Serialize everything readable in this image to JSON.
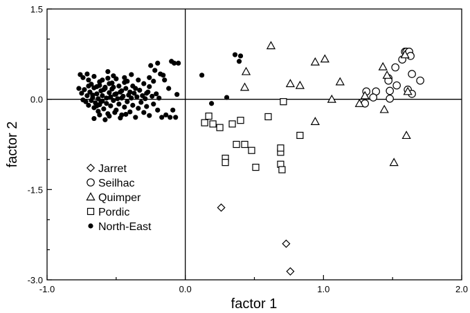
{
  "chart_data": {
    "type": "scatter",
    "xlabel": "factor 1",
    "ylabel": "factor 2",
    "xlim": [
      -1.0,
      2.0
    ],
    "ylim": [
      -3.0,
      1.5
    ],
    "x_ticks": [
      -1.0,
      0.0,
      1.0,
      2.0
    ],
    "x_tick_labels": [
      "-1.0",
      "0.0",
      "1.0",
      "2.0"
    ],
    "y_ticks": [
      1.5,
      0.0,
      -1.5,
      -3.0
    ],
    "y_tick_labels": [
      "1.5",
      "0.0",
      "-1.5",
      "-3.0"
    ],
    "reference_lines": {
      "x": 0.0,
      "y": 0.0
    },
    "grid": false,
    "legend": {
      "position": "lower-left"
    },
    "series": [
      {
        "name": "Jarret",
        "marker": "diamond",
        "points": [
          [
            0.26,
            -1.8
          ],
          [
            0.73,
            -2.4
          ],
          [
            0.76,
            -2.86
          ]
        ]
      },
      {
        "name": "Seilhac",
        "marker": "circle",
        "points": [
          [
            1.31,
            0.13
          ],
          [
            1.3,
            -0.07
          ],
          [
            1.38,
            0.13
          ],
          [
            1.36,
            0.03
          ],
          [
            1.47,
            0.35
          ],
          [
            1.47,
            0.31
          ],
          [
            1.48,
            0.14
          ],
          [
            1.48,
            0.01
          ],
          [
            1.52,
            0.53
          ],
          [
            1.53,
            0.23
          ],
          [
            1.57,
            0.66
          ],
          [
            1.59,
            0.79
          ],
          [
            1.6,
            0.79
          ],
          [
            1.62,
            0.79
          ],
          [
            1.63,
            0.72
          ],
          [
            1.61,
            0.16
          ],
          [
            1.64,
            0.42
          ],
          [
            1.64,
            0.09
          ],
          [
            1.7,
            0.31
          ]
        ]
      },
      {
        "name": "Quimper",
        "marker": "triangle",
        "points": [
          [
            0.44,
            0.46
          ],
          [
            0.43,
            0.2
          ],
          [
            0.62,
            0.89
          ],
          [
            0.76,
            0.26
          ],
          [
            0.83,
            0.23
          ],
          [
            0.94,
            0.62
          ],
          [
            1.01,
            0.67
          ],
          [
            1.06,
            0.0
          ],
          [
            0.94,
            -0.37
          ],
          [
            1.12,
            0.29
          ],
          [
            1.26,
            -0.07
          ],
          [
            1.3,
            0.06
          ],
          [
            1.43,
            0.54
          ],
          [
            1.46,
            0.4
          ],
          [
            1.44,
            -0.17
          ],
          [
            1.51,
            -1.05
          ],
          [
            1.59,
            0.74
          ],
          [
            1.61,
            0.13
          ],
          [
            1.6,
            -0.6
          ]
        ]
      },
      {
        "name": "Pordic",
        "marker": "square",
        "points": [
          [
            0.14,
            -0.39
          ],
          [
            0.17,
            -0.28
          ],
          [
            0.2,
            -0.41
          ],
          [
            0.25,
            -0.47
          ],
          [
            0.29,
            -0.98
          ],
          [
            0.29,
            -1.05
          ],
          [
            0.34,
            -0.41
          ],
          [
            0.37,
            -0.75
          ],
          [
            0.4,
            -0.35
          ],
          [
            0.43,
            -0.75
          ],
          [
            0.48,
            -0.85
          ],
          [
            0.51,
            -1.13
          ],
          [
            0.6,
            -0.29
          ],
          [
            0.69,
            -0.88
          ],
          [
            0.69,
            -0.81
          ],
          [
            0.69,
            -1.08
          ],
          [
            0.7,
            -1.17
          ],
          [
            0.71,
            -0.04
          ],
          [
            0.83,
            -0.6
          ]
        ]
      },
      {
        "name": "North-East",
        "marker": "dot",
        "points": [
          [
            -0.76,
            0.41
          ],
          [
            -0.74,
            0.36
          ],
          [
            -0.71,
            0.42
          ],
          [
            -0.7,
            0.32
          ],
          [
            -0.68,
            0.25
          ],
          [
            -0.66,
            0.38
          ],
          [
            -0.64,
            0.21
          ],
          [
            -0.62,
            0.29
          ],
          [
            -0.6,
            0.32
          ],
          [
            -0.58,
            0.18
          ],
          [
            -0.56,
            0.46
          ],
          [
            -0.55,
            0.26
          ],
          [
            -0.52,
            0.2
          ],
          [
            -0.5,
            0.34
          ],
          [
            -0.48,
            0.22
          ],
          [
            -0.46,
            0.14
          ],
          [
            -0.44,
            0.28
          ],
          [
            -0.42,
            0.3
          ],
          [
            -0.4,
            0.12
          ],
          [
            -0.38,
            0.22
          ],
          [
            -0.36,
            0.18
          ],
          [
            -0.34,
            0.32
          ],
          [
            -0.3,
            0.26
          ],
          [
            -0.28,
            0.1
          ],
          [
            -0.26,
            0.36
          ],
          [
            -0.25,
            0.56
          ],
          [
            -0.22,
            0.48
          ],
          [
            -0.2,
            0.6
          ],
          [
            -0.18,
            0.42
          ],
          [
            -0.15,
            0.32
          ],
          [
            -0.12,
            0.18
          ],
          [
            -0.1,
            0.63
          ],
          [
            -0.08,
            0.6
          ],
          [
            -0.05,
            0.6
          ],
          [
            -0.06,
            0.08
          ],
          [
            -0.75,
            0.1
          ],
          [
            -0.73,
            0.16
          ],
          [
            -0.71,
            0.06
          ],
          [
            -0.69,
            0.12
          ],
          [
            -0.67,
            0.03
          ],
          [
            -0.66,
            0.19
          ],
          [
            -0.64,
            0.09
          ],
          [
            -0.63,
            0.01
          ],
          [
            -0.61,
            0.14
          ],
          [
            -0.6,
            0.06
          ],
          [
            -0.58,
            0.2
          ],
          [
            -0.57,
            0.02
          ],
          [
            -0.55,
            0.11
          ],
          [
            -0.54,
            0.04
          ],
          [
            -0.53,
            0.17
          ],
          [
            -0.51,
            0.08
          ],
          [
            -0.49,
            0.01
          ],
          [
            -0.47,
            0.12
          ],
          [
            -0.45,
            0.05
          ],
          [
            -0.43,
            0.18
          ],
          [
            -0.41,
            0.07
          ],
          [
            -0.39,
            0.02
          ],
          [
            -0.37,
            0.1
          ],
          [
            -0.35,
            0.04
          ],
          [
            -0.33,
            0.15
          ],
          [
            -0.31,
            0.06
          ],
          [
            -0.29,
            0.01
          ],
          [
            -0.27,
            0.12
          ],
          [
            -0.24,
            0.05
          ],
          [
            -0.21,
            0.09
          ],
          [
            -0.19,
            0.02
          ],
          [
            -0.72,
            -0.04
          ],
          [
            -0.7,
            -0.1
          ],
          [
            -0.68,
            -0.02
          ],
          [
            -0.66,
            -0.14
          ],
          [
            -0.65,
            -0.06
          ],
          [
            -0.63,
            -0.2
          ],
          [
            -0.62,
            -0.09
          ],
          [
            -0.6,
            -0.03
          ],
          [
            -0.59,
            -0.16
          ],
          [
            -0.57,
            -0.07
          ],
          [
            -0.56,
            -0.24
          ],
          [
            -0.54,
            -0.11
          ],
          [
            -0.52,
            -0.02
          ],
          [
            -0.5,
            -0.18
          ],
          [
            -0.48,
            -0.08
          ],
          [
            -0.46,
            -0.26
          ],
          [
            -0.44,
            -0.13
          ],
          [
            -0.42,
            -0.04
          ],
          [
            -0.4,
            -0.21
          ],
          [
            -0.38,
            -0.1
          ],
          [
            -0.36,
            -0.3
          ],
          [
            -0.34,
            -0.15
          ],
          [
            -0.32,
            -0.05
          ],
          [
            -0.3,
            -0.22
          ],
          [
            -0.28,
            -0.12
          ],
          [
            -0.26,
            -0.27
          ],
          [
            -0.23,
            -0.08
          ],
          [
            -0.2,
            -0.18
          ],
          [
            -0.17,
            -0.3
          ],
          [
            -0.14,
            -0.26
          ],
          [
            -0.09,
            -0.18
          ],
          [
            -0.66,
            -0.32
          ],
          [
            -0.62,
            -0.26
          ],
          [
            -0.58,
            -0.34
          ],
          [
            -0.55,
            -0.28
          ],
          [
            -0.51,
            -0.22
          ],
          [
            -0.47,
            -0.31
          ],
          [
            -0.43,
            -0.25
          ],
          [
            -0.64,
            -0.11
          ],
          [
            -0.61,
            -0.04
          ],
          [
            -0.67,
            0.07
          ],
          [
            -0.62,
            0.23
          ],
          [
            -0.59,
            0.16
          ],
          [
            -0.53,
            0.27
          ],
          [
            -0.5,
            0.09
          ],
          [
            -0.46,
            0.02
          ],
          [
            -0.7,
            0.22
          ],
          [
            -0.74,
            -0.01
          ],
          [
            -0.77,
            0.18
          ],
          [
            -0.56,
            0.35
          ],
          [
            -0.52,
            0.39
          ],
          [
            -0.44,
            0.36
          ],
          [
            -0.39,
            0.41
          ],
          [
            -0.23,
            0.3
          ],
          [
            -0.26,
            0.21
          ],
          [
            -0.16,
            0.4
          ],
          [
            -0.11,
            -0.3
          ],
          [
            -0.07,
            -0.3
          ],
          [
            0.12,
            0.4
          ],
          [
            0.19,
            -0.07
          ],
          [
            0.3,
            0.03
          ],
          [
            0.36,
            0.74
          ],
          [
            0.4,
            0.72
          ],
          [
            0.39,
            0.63
          ]
        ]
      }
    ]
  }
}
